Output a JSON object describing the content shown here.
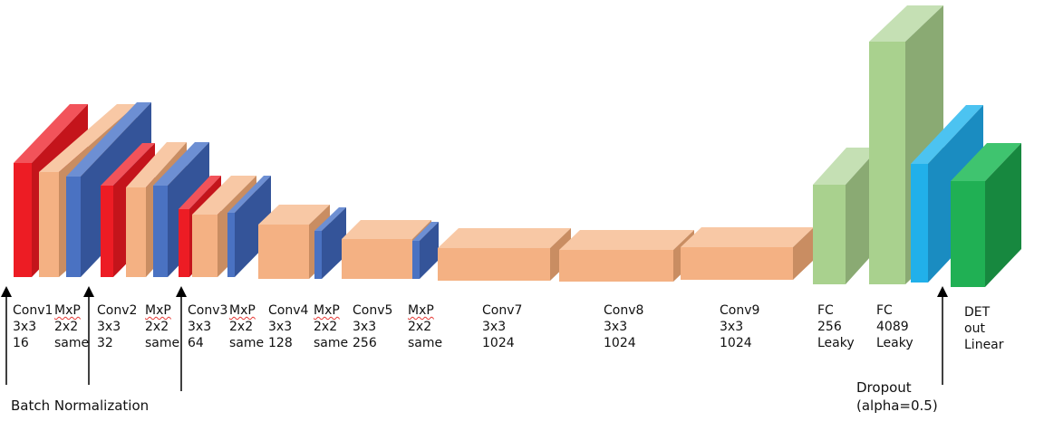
{
  "blocks": [
    {
      "id": "conv1-block",
      "color": "red"
    },
    {
      "id": "maxpool1-block",
      "color": "peach"
    },
    {
      "id": "batchnorm1-block",
      "color": "blue"
    },
    {
      "id": "conv2-block",
      "color": "red"
    },
    {
      "id": "maxpool2-block",
      "color": "peach"
    },
    {
      "id": "batchnorm2-block",
      "color": "blue"
    },
    {
      "id": "conv3-block",
      "color": "red"
    },
    {
      "id": "maxpool3-block",
      "color": "peach"
    },
    {
      "id": "batchnorm3-block",
      "color": "blue"
    },
    {
      "id": "conv4-block",
      "color": "peach"
    },
    {
      "id": "maxpool4-block",
      "color": "blue"
    },
    {
      "id": "conv5-block",
      "color": "peach"
    },
    {
      "id": "maxpool5-block",
      "color": "blue"
    },
    {
      "id": "conv7-block",
      "color": "peach"
    },
    {
      "id": "conv8-block",
      "color": "peach"
    },
    {
      "id": "conv9-block",
      "color": "peach"
    },
    {
      "id": "fc256-block",
      "color": "lightgreen"
    },
    {
      "id": "fc4089-block",
      "color": "lightgreen"
    },
    {
      "id": "dropout-block",
      "color": "cyan"
    },
    {
      "id": "det-block",
      "color": "green"
    }
  ],
  "colors": {
    "red": {
      "front": "#ed1c24",
      "top": "#f2535a",
      "side": "#c4141b"
    },
    "peach": {
      "front": "#f4b183",
      "top": "#f8c8a5",
      "side": "#c98d62"
    },
    "blue": {
      "front": "#4a72c2",
      "top": "#6d8fd3",
      "side": "#345499"
    },
    "lightgreen": {
      "front": "#a9d18e",
      "top": "#c5e0b4",
      "side": "#8aaa73"
    },
    "cyan": {
      "front": "#21b0ea",
      "top": "#4cc3f1",
      "side": "#1a8cc1"
    },
    "green": {
      "front": "#20b054",
      "top": "#3fc46f",
      "side": "#17883f"
    }
  },
  "labels": {
    "conv1": [
      "Conv1",
      "3x3",
      "16"
    ],
    "mxp1": [
      "MxP",
      "2x2",
      "same"
    ],
    "conv2": [
      "Conv2",
      "3x3",
      "32"
    ],
    "mxp2": [
      "MxP",
      "2x2",
      "same"
    ],
    "conv3": [
      "Conv3",
      "3x3",
      "64"
    ],
    "mxp3": [
      "MxP",
      "2x2",
      "same"
    ],
    "conv4": [
      "Conv4",
      "3x3",
      "128"
    ],
    "mxp4": [
      "MxP",
      "2x2",
      "same"
    ],
    "conv5": [
      "Conv5",
      "3x3",
      "256"
    ],
    "mxp5": [
      "MxP",
      "2x2",
      "same"
    ],
    "conv7": [
      "Conv7",
      "3x3",
      "1024"
    ],
    "conv8": [
      "Conv8",
      "3x3",
      "1024"
    ],
    "conv9": [
      "Conv9",
      "3x3",
      "1024"
    ],
    "fc256": [
      "FC",
      "256",
      "Leaky"
    ],
    "fc4089": [
      "FC",
      "4089",
      "Leaky"
    ],
    "det": [
      "DET",
      "out",
      "Linear"
    ]
  },
  "annotations": {
    "batch_norm": "Batch Normalization",
    "dropout_line1": "Dropout",
    "dropout_line2": "(alpha=0.5)"
  }
}
